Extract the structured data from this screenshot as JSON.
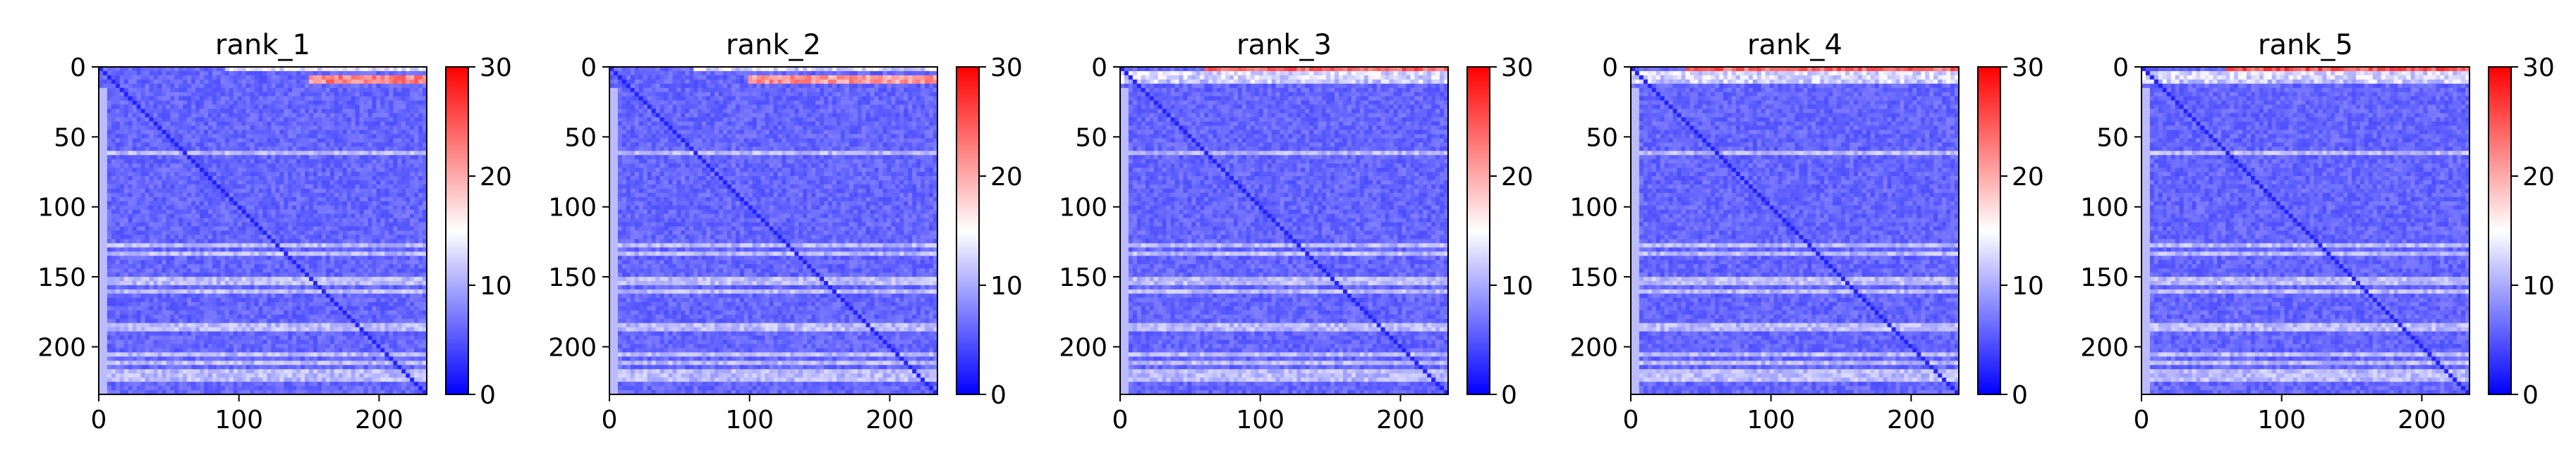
{
  "chart_data": [
    {
      "type": "heatmap",
      "title": "rank_1",
      "x_range": [
        0,
        234
      ],
      "y_range": [
        0,
        234
      ],
      "x_ticks": [
        0,
        100,
        200
      ],
      "y_ticks": [
        0,
        50,
        100,
        150,
        200
      ],
      "y_inverted": true,
      "colormap": "bwr",
      "color_range": [
        0,
        30
      ],
      "colorbar_ticks": [
        0,
        10,
        20,
        30
      ],
      "pattern": {
        "background": 6,
        "diagonal": 2,
        "top_rows": [
          {
            "row_start": 0,
            "row_end": 2,
            "value": 14,
            "x_from": 90
          },
          {
            "row_start": 7,
            "row_end": 10,
            "value": 22,
            "x_from": 150
          },
          {
            "row_start": 11,
            "row_end": 12,
            "value": 12
          }
        ],
        "light_rows": [
          62,
          128,
          133,
          153,
          160,
          186,
          205,
          212,
          218,
          222
        ],
        "light_value": 11
      }
    },
    {
      "type": "heatmap",
      "title": "rank_2",
      "x_range": [
        0,
        234
      ],
      "y_range": [
        0,
        234
      ],
      "x_ticks": [
        0,
        100,
        200
      ],
      "y_ticks": [
        0,
        50,
        100,
        150,
        200
      ],
      "y_inverted": true,
      "colormap": "bwr",
      "color_range": [
        0,
        30
      ],
      "colorbar_ticks": [
        0,
        10,
        20,
        30
      ],
      "pattern": {
        "background": 6,
        "diagonal": 2,
        "top_rows": [
          {
            "row_start": 0,
            "row_end": 2,
            "value": 13,
            "x_from": 60
          },
          {
            "row_start": 7,
            "row_end": 10,
            "value": 21,
            "x_from": 100
          },
          {
            "row_start": 11,
            "row_end": 12,
            "value": 12
          }
        ],
        "light_rows": [
          62,
          128,
          133,
          153,
          160,
          186,
          205,
          212,
          218,
          222
        ],
        "light_value": 11
      }
    },
    {
      "type": "heatmap",
      "title": "rank_3",
      "x_range": [
        0,
        234
      ],
      "y_range": [
        0,
        234
      ],
      "x_ticks": [
        0,
        100,
        200
      ],
      "y_ticks": [
        0,
        50,
        100,
        150,
        200
      ],
      "y_inverted": true,
      "colormap": "bwr",
      "color_range": [
        0,
        30
      ],
      "colorbar_ticks": [
        0,
        10,
        20,
        30
      ],
      "pattern": {
        "background": 6,
        "diagonal": 2,
        "top_rows": [
          {
            "row_start": 0,
            "row_end": 3,
            "value": 24,
            "x_from": 60
          },
          {
            "row_start": 4,
            "row_end": 7,
            "value": 13
          },
          {
            "row_start": 10,
            "row_end": 12,
            "value": 12
          }
        ],
        "light_rows": [
          62,
          128,
          133,
          153,
          160,
          186,
          205,
          212,
          218,
          222
        ],
        "light_value": 11
      }
    },
    {
      "type": "heatmap",
      "title": "rank_4",
      "x_range": [
        0,
        234
      ],
      "y_range": [
        0,
        234
      ],
      "x_ticks": [
        0,
        100,
        200
      ],
      "y_ticks": [
        0,
        50,
        100,
        150,
        200
      ],
      "y_inverted": true,
      "colormap": "bwr",
      "color_range": [
        0,
        30
      ],
      "colorbar_ticks": [
        0,
        10,
        20,
        30
      ],
      "pattern": {
        "background": 6,
        "diagonal": 2,
        "top_rows": [
          {
            "row_start": 0,
            "row_end": 3,
            "value": 24,
            "x_from": 40
          },
          {
            "row_start": 4,
            "row_end": 7,
            "value": 13
          },
          {
            "row_start": 10,
            "row_end": 12,
            "value": 12
          }
        ],
        "light_rows": [
          62,
          128,
          133,
          153,
          160,
          186,
          205,
          212,
          218,
          222
        ],
        "light_value": 11
      }
    },
    {
      "type": "heatmap",
      "title": "rank_5",
      "x_range": [
        0,
        234
      ],
      "y_range": [
        0,
        234
      ],
      "x_ticks": [
        0,
        100,
        200
      ],
      "y_ticks": [
        0,
        50,
        100,
        150,
        200
      ],
      "y_inverted": true,
      "colormap": "bwr",
      "color_range": [
        0,
        30
      ],
      "colorbar_ticks": [
        0,
        10,
        20,
        30
      ],
      "pattern": {
        "background": 6,
        "diagonal": 2,
        "top_rows": [
          {
            "row_start": 0,
            "row_end": 3,
            "value": 25,
            "x_from": 60
          },
          {
            "row_start": 4,
            "row_end": 7,
            "value": 13
          },
          {
            "row_start": 10,
            "row_end": 12,
            "value": 12
          }
        ],
        "light_rows": [
          62,
          128,
          133,
          153,
          160,
          186,
          205,
          212,
          218,
          222
        ],
        "light_value": 11
      }
    }
  ]
}
